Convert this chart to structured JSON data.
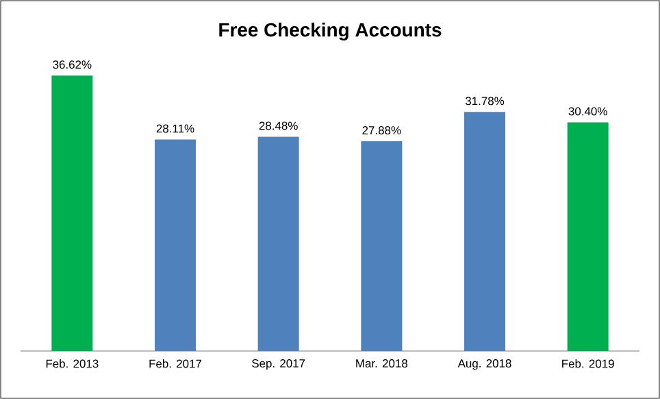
{
  "chart_data": {
    "type": "bar",
    "title": "Free Checking Accounts",
    "categories": [
      "Feb. 2013",
      "Feb. 2017",
      "Sep. 2017",
      "Mar. 2018",
      "Aug. 2018",
      "Feb. 2019"
    ],
    "values": [
      36.62,
      28.11,
      28.48,
      27.88,
      31.78,
      30.4
    ],
    "colors": [
      "#00b050",
      "#4f81bd",
      "#4f81bd",
      "#4f81bd",
      "#4f81bd",
      "#00b050"
    ],
    "value_labels": [
      "36.62%",
      "28.11%",
      "28.48%",
      "27.88%",
      "31.78%",
      "30.40%"
    ]
  }
}
